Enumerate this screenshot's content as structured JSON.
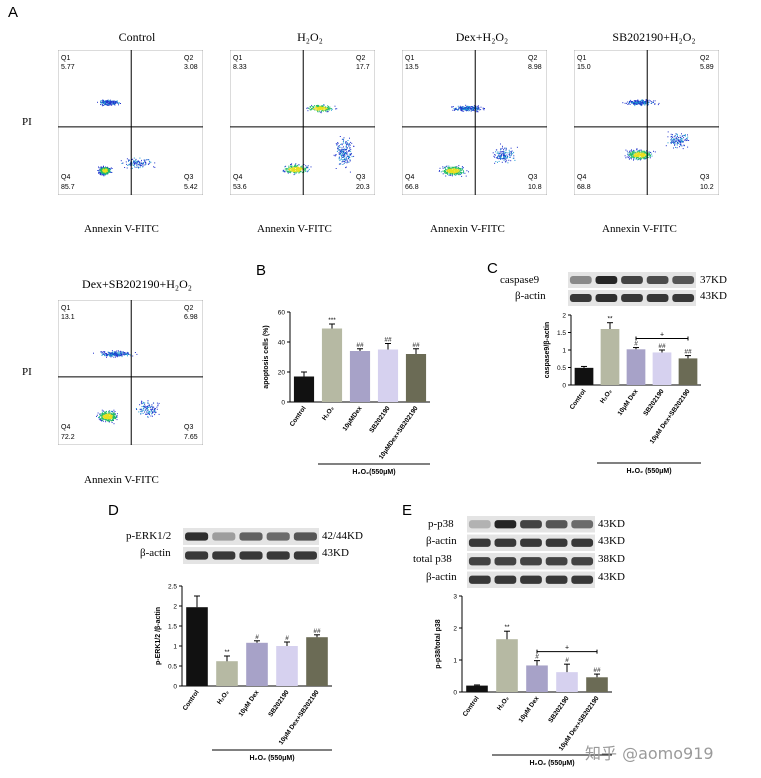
{
  "panel_a": {
    "letter": "A",
    "y_axis_label": "PI",
    "x_axis_label": "Annexin V-FITC",
    "plots": [
      {
        "title": "Control",
        "q1_label": "Q1",
        "q1": "5.77",
        "q2_label": "Q2",
        "q2": "3.08",
        "q3_label": "Q3",
        "q3": "5.42",
        "q4_label": "Q4",
        "q4": "85.7"
      },
      {
        "title": "H₂O₂",
        "q1_label": "Q1",
        "q1": "8.33",
        "q2_label": "Q2",
        "q2": "17.7",
        "q3_label": "Q3",
        "q3": "20.3",
        "q4_label": "Q4",
        "q4": "53.6"
      },
      {
        "title": "Dex+H₂O₂",
        "q1_label": "Q1",
        "q1": "13.5",
        "q2_label": "Q2",
        "q2": "8.98",
        "q3_label": "Q3",
        "q3": "10.8",
        "q4_label": "Q4",
        "q4": "66.8"
      },
      {
        "title": "SB202190+H₂O₂",
        "q1_label": "Q1",
        "q1": "15.0",
        "q2_label": "Q2",
        "q2": "5.89",
        "q3_label": "Q3",
        "q3": "10.2",
        "q4_label": "Q4",
        "q4": "68.8"
      },
      {
        "title": "Dex+SB202190+H₂O₂",
        "q1_label": "Q1",
        "q1": "13.1",
        "q2_label": "Q2",
        "q2": "6.98",
        "q3_label": "Q3",
        "q3": "7.65",
        "q4_label": "Q4",
        "q4": "72.2"
      }
    ]
  },
  "panel_b": {
    "letter": "B"
  },
  "panel_c": {
    "letter": "C",
    "bands": [
      "caspase9",
      "β-actin"
    ],
    "sizes": [
      "37KD",
      "43KD"
    ]
  },
  "panel_d": {
    "letter": "D",
    "bands": [
      "p-ERK1/2",
      "β-actin"
    ],
    "sizes": [
      "42/44KD",
      "43KD"
    ]
  },
  "panel_e": {
    "letter": "E",
    "bands": [
      "p-p38",
      "β-actin",
      "total p38",
      "β-actin"
    ],
    "sizes": [
      "43KD",
      "43KD",
      "38KD",
      "43KD"
    ]
  },
  "treatment_label": "H₂O₂(550μM)",
  "treatment_label_spaced": "H₂O₂ (550μM)",
  "watermark": "知乎 @aomo919",
  "colors": {
    "black": "#111111",
    "sage": "#b6b9a3",
    "lavender": "#a7a2c8",
    "lilac": "#d6d1ef",
    "olive": "#6b6b55"
  },
  "chart_data": [
    {
      "id": "B",
      "type": "bar",
      "ylabel": "apoptosis cells (%)",
      "ylim": [
        0,
        60
      ],
      "yticks": [
        0,
        20,
        40,
        60
      ],
      "categories": [
        "Control",
        "H₂O₂",
        "10μMDex",
        "SB202190",
        "10μMDex+SB202190"
      ],
      "values": [
        17,
        49,
        34,
        35,
        32
      ],
      "errors": [
        3,
        3,
        1.5,
        4,
        3.5
      ],
      "annotations": [
        "",
        "***",
        "##",
        "##",
        "##"
      ],
      "bracket": "",
      "bracket_mark": ""
    },
    {
      "id": "C",
      "type": "bar",
      "ylabel": "caspase9/β-actin",
      "ylim": [
        0,
        2.0
      ],
      "yticks": [
        0,
        0.5,
        1.0,
        1.5,
        2.0
      ],
      "categories": [
        "Control",
        "H₂O₂",
        "10μM Dex",
        "SB202190",
        "10μM Dex+SB202190"
      ],
      "values": [
        0.49,
        1.6,
        1.02,
        0.93,
        0.76
      ],
      "errors": [
        0.04,
        0.18,
        0.05,
        0.07,
        0.08
      ],
      "annotations": [
        "",
        "**",
        "#",
        "##",
        "##"
      ],
      "bracket": [
        2,
        4
      ],
      "bracket_mark": "+"
    },
    {
      "id": "D",
      "type": "bar",
      "ylabel": "p-ERK1/2 /β-actin",
      "ylim": [
        0,
        2.5
      ],
      "yticks": [
        0,
        0.5,
        1.0,
        1.5,
        2.0,
        2.5
      ],
      "categories": [
        "Control",
        "H₂O₂",
        "10μM Dex",
        "SB202190",
        "10μM Dex+SB202190"
      ],
      "values": [
        1.97,
        0.62,
        1.08,
        1.0,
        1.22
      ],
      "errors": [
        0.28,
        0.13,
        0.05,
        0.1,
        0.06
      ],
      "annotations": [
        "",
        "**",
        "#",
        "#",
        "##"
      ],
      "bracket": "",
      "bracket_mark": ""
    },
    {
      "id": "E",
      "type": "bar",
      "ylabel": "p-p38/total p38",
      "ylim": [
        0,
        3
      ],
      "yticks": [
        0,
        1,
        2,
        3
      ],
      "categories": [
        "Control",
        "H₂O₂",
        "10μM Dex",
        "SB202190",
        "10μM Dex+SB202190"
      ],
      "values": [
        0.2,
        1.65,
        0.83,
        0.62,
        0.46
      ],
      "errors": [
        0.02,
        0.25,
        0.15,
        0.25,
        0.1
      ],
      "annotations": [
        "",
        "**",
        "#",
        "#",
        "##"
      ],
      "bracket": [
        2,
        4
      ],
      "bracket_mark": "+"
    }
  ]
}
